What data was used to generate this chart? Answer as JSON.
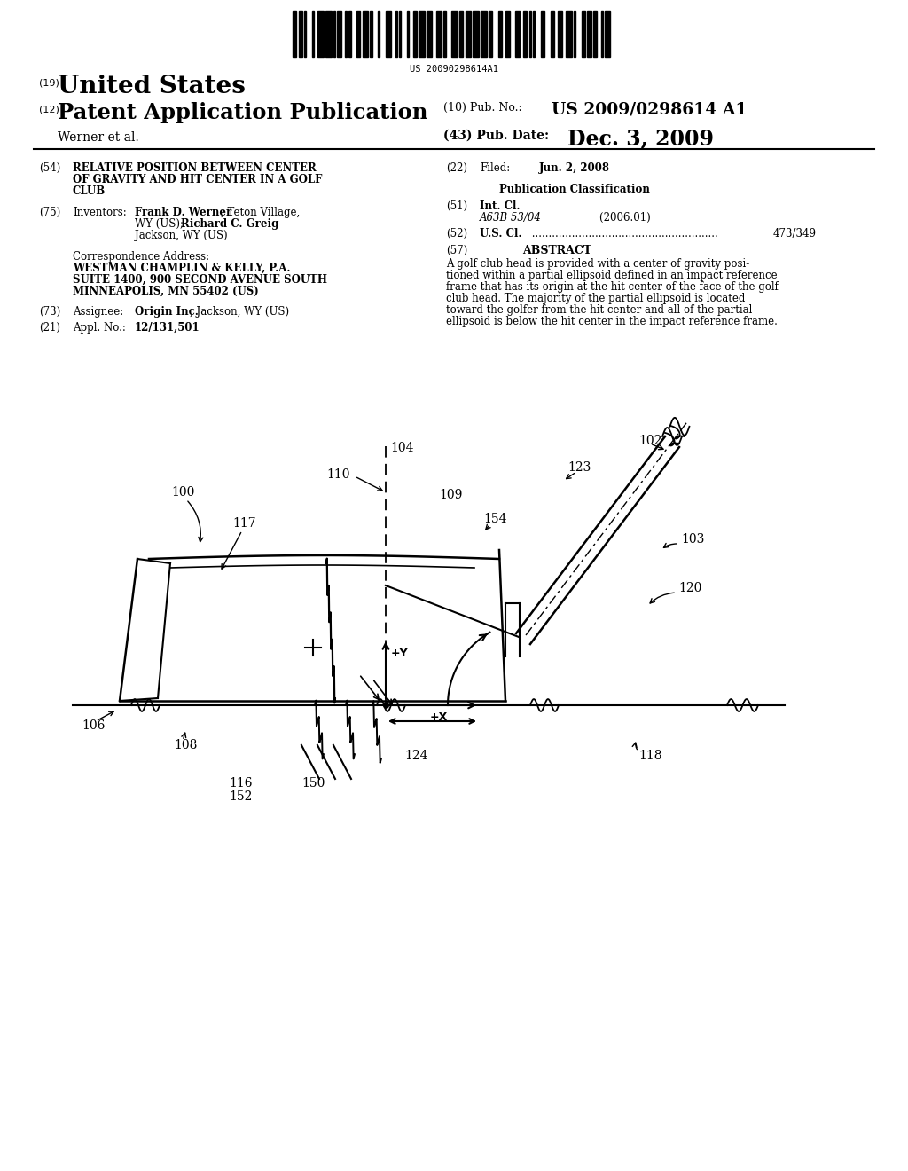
{
  "bg_color": "#ffffff",
  "barcode_text": "US 20090298614A1",
  "pub_no_label": "(10) Pub. No.:",
  "pub_no_value": "US 2009/0298614 A1",
  "pub_date_label": "(43) Pub. Date:",
  "pub_date_value": "Dec. 3, 2009",
  "field22_text": "Jun. 2, 2008",
  "field51_class": "A63B 53/04",
  "field51_year": "(2006.01)",
  "field52_value": "473/349",
  "abstract_text1": "A golf club head is provided with a center of gravity posi-",
  "abstract_text2": "tioned within a partial ellipsoid defined in an impact reference",
  "abstract_text3": "frame that has its origin at the hit center of the face of the golf",
  "abstract_text4": "club head. The majority of the partial ellipsoid is located",
  "abstract_text5": "toward the golfer from the hit center and all of the partial",
  "abstract_text6": "ellipsoid is below the hit center in the impact reference frame."
}
